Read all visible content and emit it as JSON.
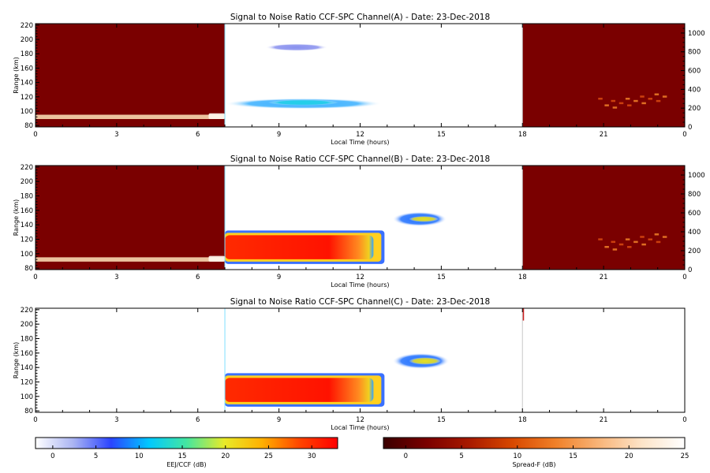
{
  "chart_data": {
    "type": "heatmap",
    "panels": [
      {
        "id": "A",
        "title": "Signal to Noise Ratio CCF-SPC Channel(A) - Date: 23-Dec-2018",
        "xlabel": "Local Time (hours)",
        "ylabel": "Range (km)",
        "xlim": [
          0,
          24
        ],
        "ylim": [
          78,
          222
        ],
        "xticks": [
          "0",
          "3",
          "6",
          "9",
          "12",
          "15",
          "18",
          "21",
          "0"
        ],
        "yticks": [
          "80",
          "100",
          "120",
          "140",
          "160",
          "180",
          "200",
          "220"
        ],
        "right_ylim": [
          0,
          1100
        ],
        "right_yticks": [
          "0",
          "200",
          "400",
          "600",
          "800",
          "1000"
        ],
        "night_spans_hours": [
          [
            0,
            7
          ],
          [
            18,
            24
          ]
        ],
        "day_span_hours": [
          7,
          18
        ],
        "features": [
          {
            "type": "night_band",
            "x": [
              0,
              7
            ],
            "y": [
              89,
              95
            ],
            "color": "#f7d8b0"
          },
          {
            "type": "night_band",
            "x": [
              6.4,
              7
            ],
            "y": [
              89,
              97
            ],
            "color": "#fff8ee"
          },
          {
            "type": "spreadf_patch",
            "x": [
              20.8,
              23.3
            ],
            "y": [
              100,
              122
            ],
            "color": "#d84a10"
          },
          {
            "type": "eej_blob",
            "x": [
              7.0,
              12.8
            ],
            "y": [
              103,
              118
            ],
            "color": "#3ab0ff"
          },
          {
            "type": "eej_blob",
            "x": [
              8.6,
              11.2
            ],
            "y": [
              108,
              116
            ],
            "color": "#22d0e8"
          },
          {
            "type": "eej_blob",
            "x": [
              8.5,
              10.8
            ],
            "y": [
              184,
              194
            ],
            "color": "#8890ee"
          }
        ]
      },
      {
        "id": "B",
        "title": "Signal to Noise Ratio CCF-SPC Channel(B) - Date: 23-Dec-2018",
        "xlabel": "Local Time (hours)",
        "ylabel": "Range (km)",
        "xlim": [
          0,
          24
        ],
        "ylim": [
          78,
          222
        ],
        "xticks": [
          "0",
          "3",
          "6",
          "9",
          "12",
          "15",
          "18",
          "21",
          "0"
        ],
        "yticks": [
          "80",
          "100",
          "120",
          "140",
          "160",
          "180",
          "200",
          "220"
        ],
        "right_ylim": [
          0,
          1100
        ],
        "right_yticks": [
          "0",
          "200",
          "400",
          "600",
          "800",
          "1000"
        ],
        "night_spans_hours": [
          [
            0,
            7
          ],
          [
            18,
            24
          ]
        ],
        "day_span_hours": [
          7,
          18
        ],
        "features": [
          {
            "type": "night_band",
            "x": [
              0,
              7
            ],
            "y": [
              89,
              95
            ],
            "color": "#f7d8b0"
          },
          {
            "type": "night_band",
            "x": [
              6.4,
              7
            ],
            "y": [
              89,
              97
            ],
            "color": "#fff8ee"
          },
          {
            "type": "spreadf_patch",
            "x": [
              20.8,
              23.3
            ],
            "y": [
              100,
              125
            ],
            "color": "#d84a10"
          },
          {
            "type": "eej_core",
            "x": [
              7.0,
              12.9
            ],
            "y": [
              88,
              130
            ],
            "color": "#ff2200"
          },
          {
            "type": "eej_blob",
            "x": [
              13.2,
              15.2
            ],
            "y": [
              138,
              158
            ],
            "color": "#2070ff"
          },
          {
            "type": "eej_blob",
            "x": [
              13.8,
              14.9
            ],
            "y": [
              144,
              152
            ],
            "color": "#e8e020"
          }
        ]
      },
      {
        "id": "C",
        "title": "Signal to Noise Ratio CCF-SPC Channel(C) - Date: 23-Dec-2018",
        "xlabel": "Local Time (hours)",
        "ylabel": "Range (km)",
        "xlim": [
          0,
          24
        ],
        "ylim": [
          78,
          222
        ],
        "xticks": [
          "0",
          "3",
          "6",
          "9",
          "12",
          "15",
          "18",
          "21",
          "0"
        ],
        "yticks": [
          "80",
          "100",
          "120",
          "140",
          "160",
          "180",
          "200",
          "220"
        ],
        "night_spans_hours": [],
        "day_span_hours": [
          7,
          18
        ],
        "features": [
          {
            "type": "eej_core",
            "x": [
              7.0,
              12.9
            ],
            "y": [
              88,
              130
            ],
            "color": "#ff2200"
          },
          {
            "type": "eej_blob",
            "x": [
              13.2,
              15.3
            ],
            "y": [
              138,
              160
            ],
            "color": "#2070ff"
          },
          {
            "type": "eej_blob",
            "x": [
              13.8,
              15.0
            ],
            "y": [
              144,
              154
            ],
            "color": "#e8e020"
          },
          {
            "type": "marker",
            "x": [
              18.0,
              18.02
            ],
            "y": [
              205,
              222
            ],
            "color": "#cc2020"
          }
        ]
      }
    ],
    "colorbars": [
      {
        "label": "EEJ/CCF (dB)",
        "range": [
          -2,
          33
        ],
        "ticks": [
          "0",
          "5",
          "10",
          "15",
          "20",
          "25",
          "30"
        ],
        "colormap": [
          "#ffffff",
          "#aab4f2",
          "#2a44ff",
          "#00c8ff",
          "#44e6a0",
          "#e8ea28",
          "#ffb000",
          "#ff4400",
          "#ff0000"
        ]
      },
      {
        "label": "Spread-F (dB)",
        "range": [
          -2,
          25
        ],
        "ticks": [
          "0",
          "5",
          "10",
          "15",
          "20",
          "25"
        ],
        "colormap": [
          "#3a0000",
          "#7a0000",
          "#a81a00",
          "#d84800",
          "#f08028",
          "#f8b478",
          "#fde4c8",
          "#ffffff"
        ]
      }
    ]
  }
}
